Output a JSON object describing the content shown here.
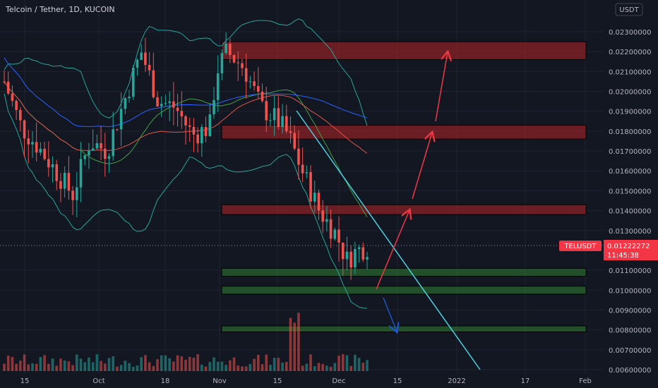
{
  "header": {
    "title": "Telcoin / Tether, 1D, KUCOIN",
    "currency_badge": "USDT"
  },
  "price_tag": {
    "symbol": "TELUSDT",
    "price": "0.01222272",
    "countdown": "11:45:38"
  },
  "colors": {
    "background": "#131722",
    "up": "#26a69a",
    "down": "#ef5350",
    "resistance_zone": "#b22222",
    "support_zone": "#2e7d32",
    "trendline": "#4dd0e1",
    "bollinger": "#26a69a",
    "ma_red": "#e0554a",
    "ma_blue": "#2962ff",
    "arrow_up": "#f23645",
    "arrow_down": "#1e55c8"
  },
  "chart_data": {
    "type": "candlestick",
    "title": "Telcoin / Tether, 1D, KUCOIN",
    "ylim": [
      0.0059,
      0.0244
    ],
    "y_ticks": [
      "0.02300000",
      "0.02200000",
      "0.02100000",
      "0.02000000",
      "0.01900000",
      "0.01800000",
      "0.01700000",
      "0.01600000",
      "0.01500000",
      "0.01400000",
      "0.01300000",
      "0.01100000",
      "0.01000000",
      "0.00900000",
      "0.00800000",
      "0.00700000",
      "0.00600000"
    ],
    "x_ticks": [
      "15",
      "Oct",
      "18",
      "Nov",
      "15",
      "Dec",
      "15",
      "2022",
      "17",
      "Feb"
    ],
    "last_price": 0.01222272,
    "zones": [
      {
        "kind": "resistance",
        "low": 0.0216,
        "high": 0.0225
      },
      {
        "kind": "resistance",
        "low": 0.0176,
        "high": 0.0183
      },
      {
        "kind": "resistance",
        "low": 0.0138,
        "high": 0.0143
      },
      {
        "kind": "support",
        "low": 0.0107,
        "high": 0.0111
      },
      {
        "kind": "support",
        "low": 0.0098,
        "high": 0.0102
      },
      {
        "kind": "support",
        "low": 0.0079,
        "high": 0.0082
      }
    ]
  }
}
